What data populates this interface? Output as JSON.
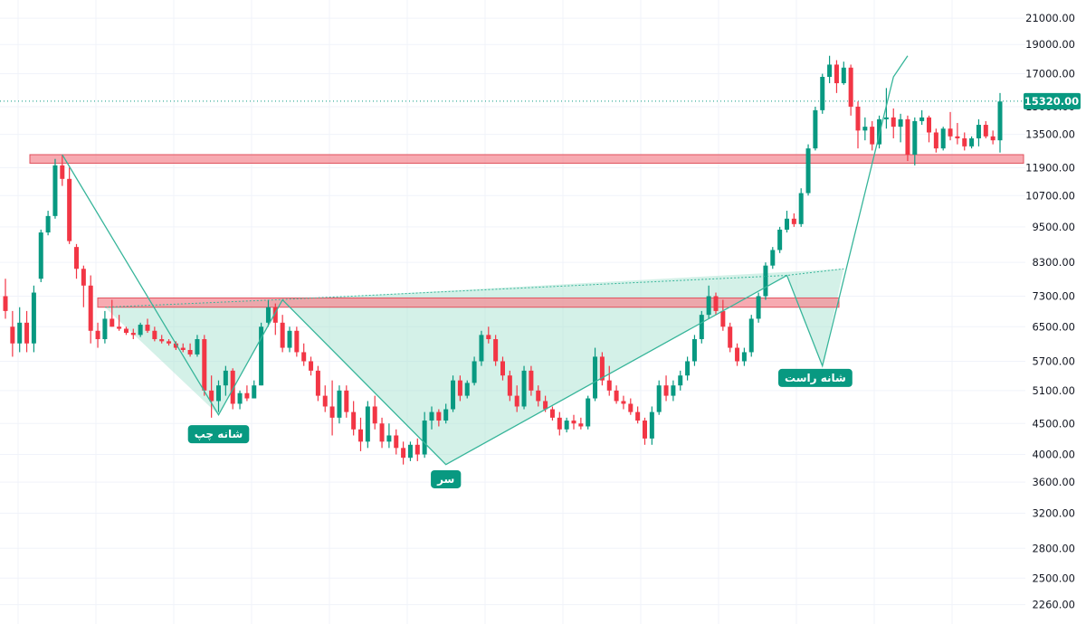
{
  "colors": {
    "up": "#089981",
    "down": "#f23645",
    "pattern_line": "#37b59a",
    "pattern_fill": "#9fe0cc",
    "zone_fill": "#f48e97",
    "zone_border": "#e0525e",
    "grid": "#f0f3fa",
    "current_price": "#089981"
  },
  "chart_data": {
    "type": "candlestick",
    "yscale": "log",
    "ylim": [
      2100,
      22500
    ],
    "y_ticks": [
      "21000.00",
      "19000.00",
      "17000.00",
      "15000.00",
      "13500.00",
      "11900.00",
      "10700.00",
      "9500.00",
      "8300.00",
      "7300.00",
      "6500.00",
      "5700.00",
      "5100.00",
      "4500.00",
      "4000.00",
      "3600.00",
      "3200.00",
      "2800.00",
      "2500.00",
      "2260.00"
    ],
    "current_price": "15320.00",
    "candles": [
      [
        7300,
        7800,
        6700,
        6900
      ],
      [
        6500,
        6900,
        5800,
        6100
      ],
      [
        6100,
        7000,
        5900,
        6600
      ],
      [
        6600,
        6900,
        5900,
        6100
      ],
      [
        6100,
        7600,
        5900,
        7400
      ],
      [
        7800,
        9400,
        7700,
        9300
      ],
      [
        9300,
        10100,
        9200,
        9900
      ],
      [
        9900,
        12300,
        9800,
        12000
      ],
      [
        12000,
        12500,
        11100,
        11400
      ],
      [
        11400,
        11900,
        8900,
        9000
      ],
      [
        8800,
        8900,
        7800,
        8100
      ],
      [
        8100,
        8200,
        7000,
        7600
      ],
      [
        7600,
        7900,
        6100,
        6400
      ],
      [
        6400,
        6600,
        6000,
        6200
      ],
      [
        6200,
        6900,
        6100,
        6700
      ],
      [
        6700,
        7200,
        6500,
        6500
      ],
      [
        6500,
        6800,
        6400,
        6450
      ],
      [
        6450,
        6500,
        6300,
        6350
      ],
      [
        6350,
        6450,
        6200,
        6300
      ],
      [
        6300,
        6600,
        6250,
        6550
      ],
      [
        6550,
        6700,
        6350,
        6400
      ],
      [
        6400,
        6500,
        6150,
        6200
      ],
      [
        6200,
        6300,
        6100,
        6150
      ],
      [
        6150,
        6200,
        6050,
        6100
      ],
      [
        6100,
        6150,
        5950,
        6000
      ],
      [
        6000,
        6100,
        5900,
        5950
      ],
      [
        5950,
        6100,
        5800,
        5850
      ],
      [
        5850,
        6300,
        5800,
        6200
      ],
      [
        6200,
        6300,
        5000,
        5100
      ],
      [
        5100,
        5400,
        4600,
        4900
      ],
      [
        4900,
        5300,
        4700,
        5200
      ],
      [
        5200,
        5600,
        5000,
        5500
      ],
      [
        5500,
        5550,
        4750,
        4850
      ],
      [
        4850,
        5100,
        4750,
        5050
      ],
      [
        5050,
        5200,
        4900,
        4950
      ],
      [
        4950,
        5300,
        4950,
        5200
      ],
      [
        5200,
        6600,
        5200,
        6500
      ],
      [
        6600,
        7200,
        6500,
        7000
      ],
      [
        7000,
        7100,
        6300,
        6600
      ],
      [
        6600,
        6800,
        5900,
        6000
      ],
      [
        6000,
        6500,
        5900,
        6400
      ],
      [
        6400,
        6500,
        5800,
        5900
      ],
      [
        5900,
        6100,
        5600,
        5700
      ],
      [
        5700,
        5800,
        5400,
        5500
      ],
      [
        5500,
        5600,
        4900,
        5000
      ],
      [
        5000,
        5200,
        4700,
        4800
      ],
      [
        4800,
        5300,
        4300,
        4600
      ],
      [
        4600,
        5200,
        4500,
        5100
      ],
      [
        5100,
        5200,
        4600,
        4700
      ],
      [
        4700,
        4900,
        4300,
        4400
      ],
      [
        4400,
        4600,
        4050,
        4200
      ],
      [
        4200,
        4900,
        4100,
        4800
      ],
      [
        4800,
        5000,
        4400,
        4500
      ],
      [
        4500,
        4600,
        4100,
        4200
      ],
      [
        4200,
        4500,
        4100,
        4300
      ],
      [
        4300,
        4400,
        4000,
        4100
      ],
      [
        4100,
        4200,
        3850,
        3950
      ],
      [
        3950,
        4200,
        3900,
        4150
      ],
      [
        4150,
        4250,
        3900,
        4000
      ],
      [
        4000,
        4700,
        3950,
        4550
      ],
      [
        4550,
        4800,
        4400,
        4700
      ],
      [
        4700,
        4750,
        4450,
        4550
      ],
      [
        4550,
        4850,
        4500,
        4750
      ],
      [
        4750,
        5400,
        4700,
        5300
      ],
      [
        5300,
        5400,
        4900,
        5000
      ],
      [
        5000,
        5300,
        4950,
        5250
      ],
      [
        5250,
        5800,
        5200,
        5700
      ],
      [
        5700,
        6400,
        5600,
        6300
      ],
      [
        6300,
        6500,
        6100,
        6200
      ],
      [
        6200,
        6300,
        5600,
        5700
      ],
      [
        5700,
        5800,
        5300,
        5400
      ],
      [
        5400,
        5500,
        4900,
        5000
      ],
      [
        5000,
        5200,
        4700,
        4800
      ],
      [
        4800,
        5600,
        4750,
        5500
      ],
      [
        5500,
        5600,
        5000,
        5100
      ],
      [
        5100,
        5200,
        4800,
        4900
      ],
      [
        4900,
        5000,
        4700,
        4750
      ],
      [
        4750,
        4800,
        4550,
        4600
      ],
      [
        4600,
        4700,
        4300,
        4400
      ],
      [
        4400,
        4600,
        4350,
        4550
      ],
      [
        4550,
        4650,
        4400,
        4500
      ],
      [
        4500,
        4600,
        4400,
        4450
      ],
      [
        4450,
        5000,
        4400,
        4950
      ],
      [
        4950,
        6000,
        4900,
        5800
      ],
      [
        5800,
        5900,
        5200,
        5300
      ],
      [
        5300,
        5600,
        5000,
        5100
      ],
      [
        5100,
        5200,
        4850,
        4900
      ],
      [
        4900,
        5000,
        4750,
        4850
      ],
      [
        4850,
        4950,
        4650,
        4700
      ],
      [
        4700,
        4800,
        4500,
        4550
      ],
      [
        4550,
        4600,
        4150,
        4250
      ],
      [
        4250,
        4800,
        4150,
        4700
      ],
      [
        4700,
        5300,
        4650,
        5200
      ],
      [
        5200,
        5400,
        4900,
        5000
      ],
      [
        5000,
        5300,
        4900,
        5200
      ],
      [
        5200,
        5500,
        5100,
        5400
      ],
      [
        5400,
        5800,
        5300,
        5700
      ],
      [
        5700,
        6300,
        5600,
        6200
      ],
      [
        6200,
        6900,
        6100,
        6800
      ],
      [
        6800,
        7600,
        6700,
        7300
      ],
      [
        7300,
        7400,
        6800,
        6900
      ],
      [
        6900,
        7200,
        6400,
        6500
      ],
      [
        6500,
        6600,
        5900,
        6000
      ],
      [
        6000,
        6100,
        5600,
        5700
      ],
      [
        5700,
        6000,
        5600,
        5900
      ],
      [
        5900,
        6800,
        5800,
        6700
      ],
      [
        6700,
        7400,
        6600,
        7300
      ],
      [
        7300,
        8300,
        7200,
        8200
      ],
      [
        8200,
        8800,
        8100,
        8700
      ],
      [
        8700,
        9500,
        8600,
        9400
      ],
      [
        9400,
        10100,
        9300,
        9800
      ],
      [
        9800,
        10000,
        9500,
        9600
      ],
      [
        9600,
        11000,
        9500,
        10800
      ],
      [
        10800,
        13000,
        10700,
        12800
      ],
      [
        12800,
        15000,
        12700,
        14800
      ],
      [
        14800,
        17000,
        14600,
        16800
      ],
      [
        16800,
        18200,
        16400,
        17600
      ],
      [
        17600,
        17900,
        15800,
        16400
      ],
      [
        16400,
        17800,
        16300,
        17400
      ],
      [
        17400,
        17600,
        14500,
        15000
      ],
      [
        15000,
        15300,
        12800,
        13700
      ],
      [
        13700,
        14400,
        13200,
        13900
      ],
      [
        13900,
        14200,
        12700,
        13000
      ],
      [
        13000,
        14500,
        12800,
        14300
      ],
      [
        14300,
        16100,
        13800,
        14400
      ],
      [
        14400,
        14900,
        13300,
        13900
      ],
      [
        13900,
        14600,
        13100,
        14300
      ],
      [
        14300,
        14500,
        12200,
        12500
      ],
      [
        12500,
        14400,
        12000,
        14200
      ],
      [
        14200,
        14800,
        14000,
        14400
      ],
      [
        14400,
        14500,
        13100,
        13600
      ],
      [
        13600,
        13800,
        12600,
        12800
      ],
      [
        12800,
        13900,
        12700,
        13800
      ],
      [
        13800,
        14700,
        13200,
        13400
      ],
      [
        13400,
        14100,
        13000,
        13300
      ],
      [
        13300,
        13600,
        12700,
        12900
      ],
      [
        12900,
        13400,
        12800,
        13300
      ],
      [
        13300,
        14300,
        12900,
        14000
      ],
      [
        14000,
        14200,
        13300,
        13400
      ],
      [
        13400,
        13700,
        13000,
        13200
      ],
      [
        13200,
        15800,
        12600,
        15300
      ]
    ],
    "resistance_zones": [
      {
        "y_top": 12500,
        "y_bottom": 12100
      },
      {
        "y_top": 7250,
        "y_bottom": 7000
      }
    ],
    "pattern": {
      "points": [
        {
          "i": 8,
          "y": 12500
        },
        {
          "i": 30,
          "y": 4650
        },
        {
          "i": 39,
          "y": 7200
        },
        {
          "i": 62,
          "y": 3850
        },
        {
          "i": 110,
          "y": 7900
        },
        {
          "i": 115,
          "y": 5600
        },
        {
          "i": 125,
          "y": 16800
        },
        {
          "i": 127,
          "y": 18200
        }
      ],
      "neckline": [
        {
          "i": 14,
          "y": 7000
        },
        {
          "i": 38,
          "y": 7200
        },
        {
          "i": 110,
          "y": 7900
        },
        {
          "i": 118,
          "y": 8100
        }
      ]
    },
    "pattern_labels": [
      {
        "text": "شانه چپ",
        "i": 30,
        "y": 4320
      },
      {
        "text": "سر",
        "i": 62,
        "y": 3640
      },
      {
        "text": "شانه راست",
        "i": 114,
        "y": 5350
      }
    ]
  }
}
